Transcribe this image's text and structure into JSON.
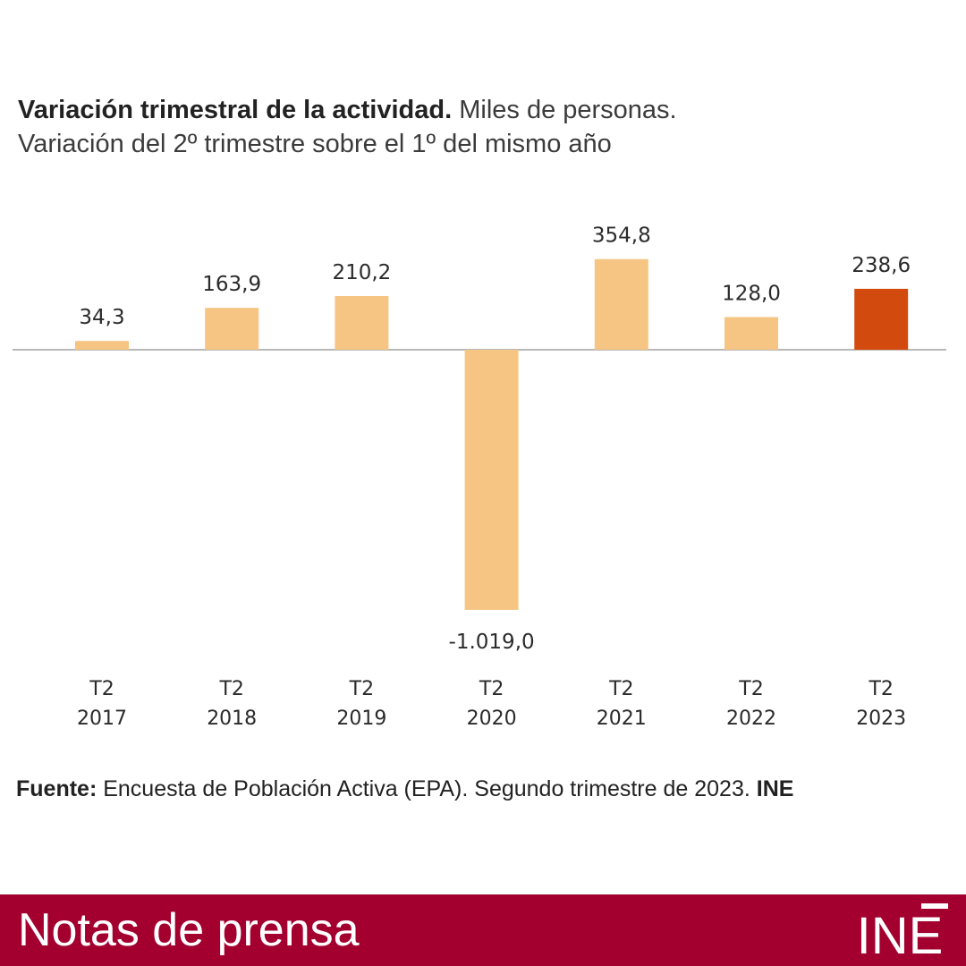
{
  "header": {
    "title_bold": "Variación trimestral de la actividad.",
    "title_rest": " Miles de personas.",
    "subtitle": "Variación del 2º trimestre sobre el 1º del mismo año"
  },
  "chart_data": {
    "type": "bar",
    "categories": [
      {
        "line1": "T2",
        "line2": "2017"
      },
      {
        "line1": "T2",
        "line2": "2018"
      },
      {
        "line1": "T2",
        "line2": "2019"
      },
      {
        "line1": "T2",
        "line2": "2020"
      },
      {
        "line1": "T2",
        "line2": "2021"
      },
      {
        "line1": "T2",
        "line2": "2022"
      },
      {
        "line1": "T2",
        "line2": "2023"
      }
    ],
    "values": [
      34.3,
      163.9,
      210.2,
      -1019.0,
      354.8,
      128.0,
      238.6
    ],
    "value_labels": [
      "34,3",
      "163,9",
      "210,2",
      "-1.019,0",
      "354,8",
      "128,0",
      "238,6"
    ],
    "colors": [
      "#f6c584",
      "#f6c584",
      "#f6c584",
      "#f6c584",
      "#f6c584",
      "#f6c584",
      "#d24a0e"
    ],
    "highlight_color": "#d24a0e",
    "bar_color": "#f6c584",
    "ylim": [
      -1019.0,
      354.8
    ],
    "grid": false,
    "legend": "none"
  },
  "source": {
    "label": "Fuente:",
    "text": " Encuesta de Población Activa (EPA). Segundo trimestre de 2023. ",
    "org": "INE"
  },
  "footer": {
    "label": "Notas de prensa",
    "logo_text": "INE",
    "background": "#a3002f"
  }
}
